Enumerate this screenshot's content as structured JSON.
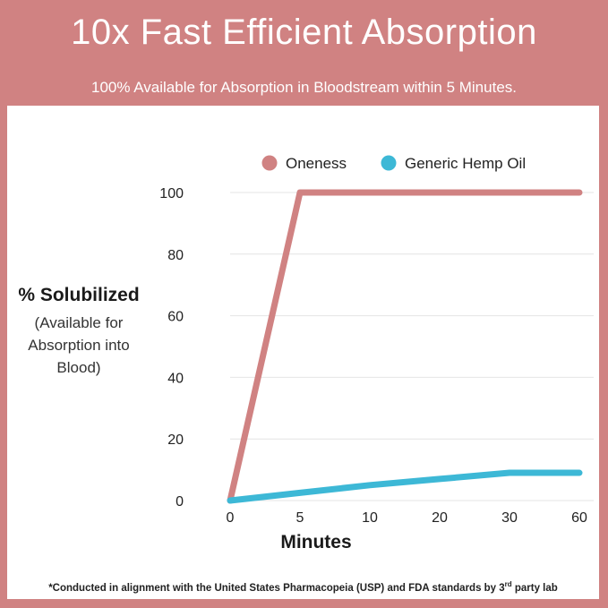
{
  "header": {
    "title": "10x Fast Efficient Absorption",
    "subtitle": "100% Available for Absorption in Bloodstream within 5 Minutes."
  },
  "footnote": {
    "text_before": "*Conducted in alignment with the United States Pharmacopeia (USP) and FDA standards by 3",
    "superscript": "rd",
    "text_after": " party lab"
  },
  "chart_data": {
    "type": "line",
    "title": "10x Fast Efficient Absorption",
    "subtitle": "100% Available for Absorption in Bloodstream within 5 Minutes.",
    "xlabel": "Minutes",
    "ylabel": "% Solubilized",
    "ylabel_note": [
      "(Available for",
      "Absorption into",
      "Blood)"
    ],
    "categories": [
      "0",
      "5",
      "10",
      "20",
      "30",
      "60"
    ],
    "yticks": [
      0,
      20,
      40,
      60,
      80,
      100
    ],
    "ylim": [
      0,
      100
    ],
    "grid": true,
    "legend_position": "top",
    "series": [
      {
        "name": "Oneness",
        "color": "#d08282",
        "values": [
          0,
          100,
          100,
          100,
          100,
          100
        ]
      },
      {
        "name": "Generic Hemp Oil",
        "color": "#3db8d6",
        "values": [
          0,
          2.5,
          5,
          7,
          9,
          9
        ]
      }
    ]
  }
}
